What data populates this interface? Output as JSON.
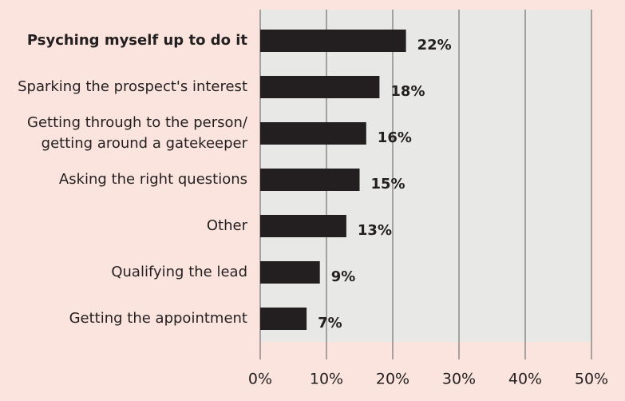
{
  "chart_data": {
    "type": "bar",
    "orientation": "horizontal",
    "categories": [
      "Psyching myself up to do it",
      "Sparking the prospect's interest",
      "Getting through to the person/\ngetting around a gatekeeper",
      "Asking the right questions",
      "Other",
      "Qualifying the lead",
      "Getting the appointment"
    ],
    "values": [
      22,
      18,
      16,
      15,
      13,
      9,
      7
    ],
    "value_labels": [
      "22%",
      "18%",
      "16%",
      "15%",
      "13%",
      "9%",
      "7%"
    ],
    "color": "#231f20",
    "xlim": [
      0,
      50
    ],
    "xticks": [
      {
        "value": 0,
        "label": "0%"
      },
      {
        "value": 10,
        "label": "10%"
      },
      {
        "value": 20,
        "label": "20%"
      },
      {
        "value": 30,
        "label": "30%"
      },
      {
        "value": 40,
        "label": "40%"
      },
      {
        "value": 50,
        "label": "50%"
      }
    ],
    "grid": true
  }
}
